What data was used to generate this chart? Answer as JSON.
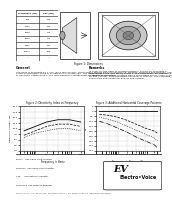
{
  "bg": "#f5f5f0",
  "white": "#ffffff",
  "black": "#111111",
  "gray": "#888888",
  "lightgray": "#cccccc",
  "darkgray": "#555555",
  "table_headers": [
    "Frequency (Hz)",
    "SPL (dB)"
  ],
  "table_rows": [
    [
      "500",
      "113"
    ],
    [
      "1000",
      "116"
    ],
    [
      "2000",
      "116"
    ],
    [
      "4000",
      "114"
    ],
    [
      "8000",
      "111"
    ],
    [
      "16000",
      "105"
    ],
    [
      "--",
      "--"
    ]
  ],
  "general_title": "General",
  "general_text": "The HP64 is used with EV 1.4 in. (35.6 mm) format  compression drivers such as the DH1A-8, DH1012, DH1012E and DH1012. The nominal dispersion angle is 60 deg horiz x 40 deg vert. The HP64 can be used with the T35, DH1A, and DH1012 drivers. Designed to minimize interference of the high-frequency components for improved coverage.",
  "remarks_title": "Remarks",
  "remarks_text": "In order for the HP64 to function properly, it must be used with a compatible 1.4 in. (35.6mm) throat 60 x 40 deg driver. Frequency response of the HP64 combined with a compatible driver is 800 Hz to 20 kHz (-10 dB). Recommended crossover is 1600 Hz. The coverage angle is 60 deg horizontal and 40 deg vertical.",
  "fig1_caption": "Figure 1: Dimensions",
  "chart1_title": "Figure 2: Directivity Index vs Frequency",
  "chart1_xlabel": "Frequency in Hertz",
  "chart1_ylabel": "DIRECTIVITY INDEX - dB",
  "chart1_x": [
    500,
    1000,
    2000,
    4000,
    8000,
    16000
  ],
  "chart1_di": [
    9,
    11,
    13,
    14,
    14,
    13
  ],
  "chart1_h60": [
    7,
    9,
    11,
    12,
    12,
    11
  ],
  "chart1_v40": [
    6,
    8,
    9,
    10,
    10,
    9
  ],
  "chart1_ylim": [
    0,
    20
  ],
  "chart2_title": "Figure 3: Additional Horizontal Coverage Patterns",
  "chart2_xlabel": "Frequency in Octaves / Hz",
  "chart2_ylabel": "dB",
  "chart2_x": [
    250,
    500,
    1000,
    2000,
    4000,
    8000,
    16000,
    20000
  ],
  "chart2_y0": [
    0,
    0,
    0,
    0,
    0,
    0,
    0,
    0
  ],
  "chart2_y1": [
    -3,
    -4,
    -6,
    -9,
    -13,
    -17,
    -20,
    -22
  ],
  "chart2_y2": [
    -6,
    -8,
    -11,
    -15,
    -19,
    -23,
    -27,
    -30
  ],
  "chart2_y3": [
    -10,
    -13,
    -17,
    -21,
    -26,
    -30,
    -34,
    -37
  ],
  "chart2_ylim": [
    -40,
    5
  ],
  "footer_items": [
    "DH1A   Use 6800 ohm resistor",
    "DH1012  Use 5600 ohm resistor",
    "T35     Use without adapter",
    "DH1012E Use without adapter"
  ],
  "footer_legal": "Electro-Voice, Inc., Buchanan, Michigan 49107  |  EV TransPlanar is a registered trademark.",
  "logo_text": "Electro-Voice"
}
